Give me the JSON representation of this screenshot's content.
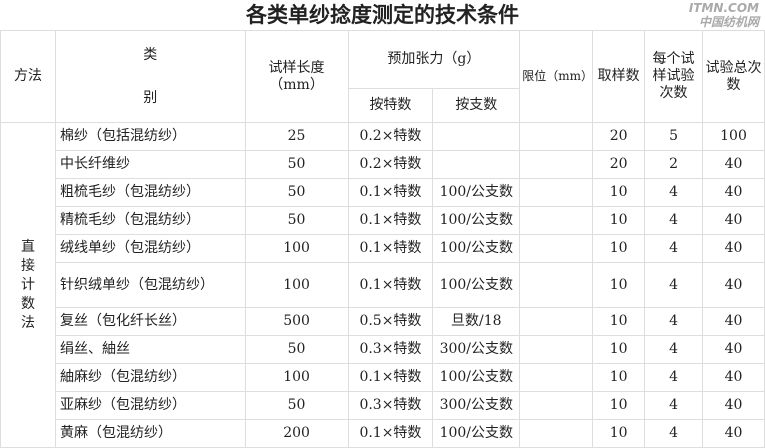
{
  "title": "各类单纱捻度测定的技术条件",
  "header": {
    "method": "方法",
    "type_line1": "类",
    "type_line2": "别",
    "length": "试样长度（mm）",
    "tension": "预加张力（g）",
    "by_tex": "按特数",
    "by_count": "按支数",
    "limit": "限位（mm）",
    "samples": "取样数",
    "per_sample": "每个试样试验次数",
    "total": "试验总次数"
  },
  "method": "直接计数法",
  "rows": [
    {
      "type": "棉纱（包括混纺纱）",
      "length": "25",
      "tex": "0.2×特数",
      "count": "",
      "limit": "",
      "samples": "20",
      "per": "5",
      "total": "100"
    },
    {
      "type": "中长纤维纱",
      "length": "50",
      "tex": "0.2×特数",
      "count": "",
      "limit": "",
      "samples": "20",
      "per": "2",
      "total": "40"
    },
    {
      "type": "粗梳毛纱（包混纺纱）",
      "length": "50",
      "tex": "0.1×特数",
      "count": "100/公支数",
      "limit": "",
      "samples": "10",
      "per": "4",
      "total": "40"
    },
    {
      "type": "精梳毛纱（包混纺纱）",
      "length": "50",
      "tex": "0.1×特数",
      "count": "100/公支数",
      "limit": "",
      "samples": "10",
      "per": "4",
      "total": "40"
    },
    {
      "type": "绒线单纱（包混纺纱）",
      "length": "100",
      "tex": "0.1×特数",
      "count": "100/公支数",
      "limit": "",
      "samples": "10",
      "per": "4",
      "total": "40"
    },
    {
      "type": "针织绒单纱（包混纺纱）",
      "length": "100",
      "tex": "0.1×特数",
      "count": "100/公支数",
      "limit": "",
      "samples": "10",
      "per": "4",
      "total": "40"
    },
    {
      "type": "复丝（包化纤长丝）",
      "length": "500",
      "tex": "0.5×特数",
      "count": "旦数/18",
      "limit": "",
      "samples": "10",
      "per": "4",
      "total": "40"
    },
    {
      "type": "绢丝、紬丝",
      "length": "50",
      "tex": "0.3×特数",
      "count": "300/公支数",
      "limit": "",
      "samples": "10",
      "per": "4",
      "total": "40"
    },
    {
      "type": "紬麻纱（包混纺纱）",
      "length": "100",
      "tex": "0.1×特数",
      "count": "100/公支数",
      "limit": "",
      "samples": "10",
      "per": "4",
      "total": "40"
    },
    {
      "type": "亚麻纱（包混纺纱）",
      "length": "50",
      "tex": "0.3×特数",
      "count": "300/公支数",
      "limit": "",
      "samples": "10",
      "per": "4",
      "total": "40"
    },
    {
      "type": "黄麻（包混纺纱）",
      "length": "200",
      "tex": "0.1×特数",
      "count": "100/公支数",
      "limit": "",
      "samples": "10",
      "per": "4",
      "total": "40"
    }
  ],
  "watermark": {
    "line1": "ITMN.COM",
    "line2": "中国纺机网"
  }
}
